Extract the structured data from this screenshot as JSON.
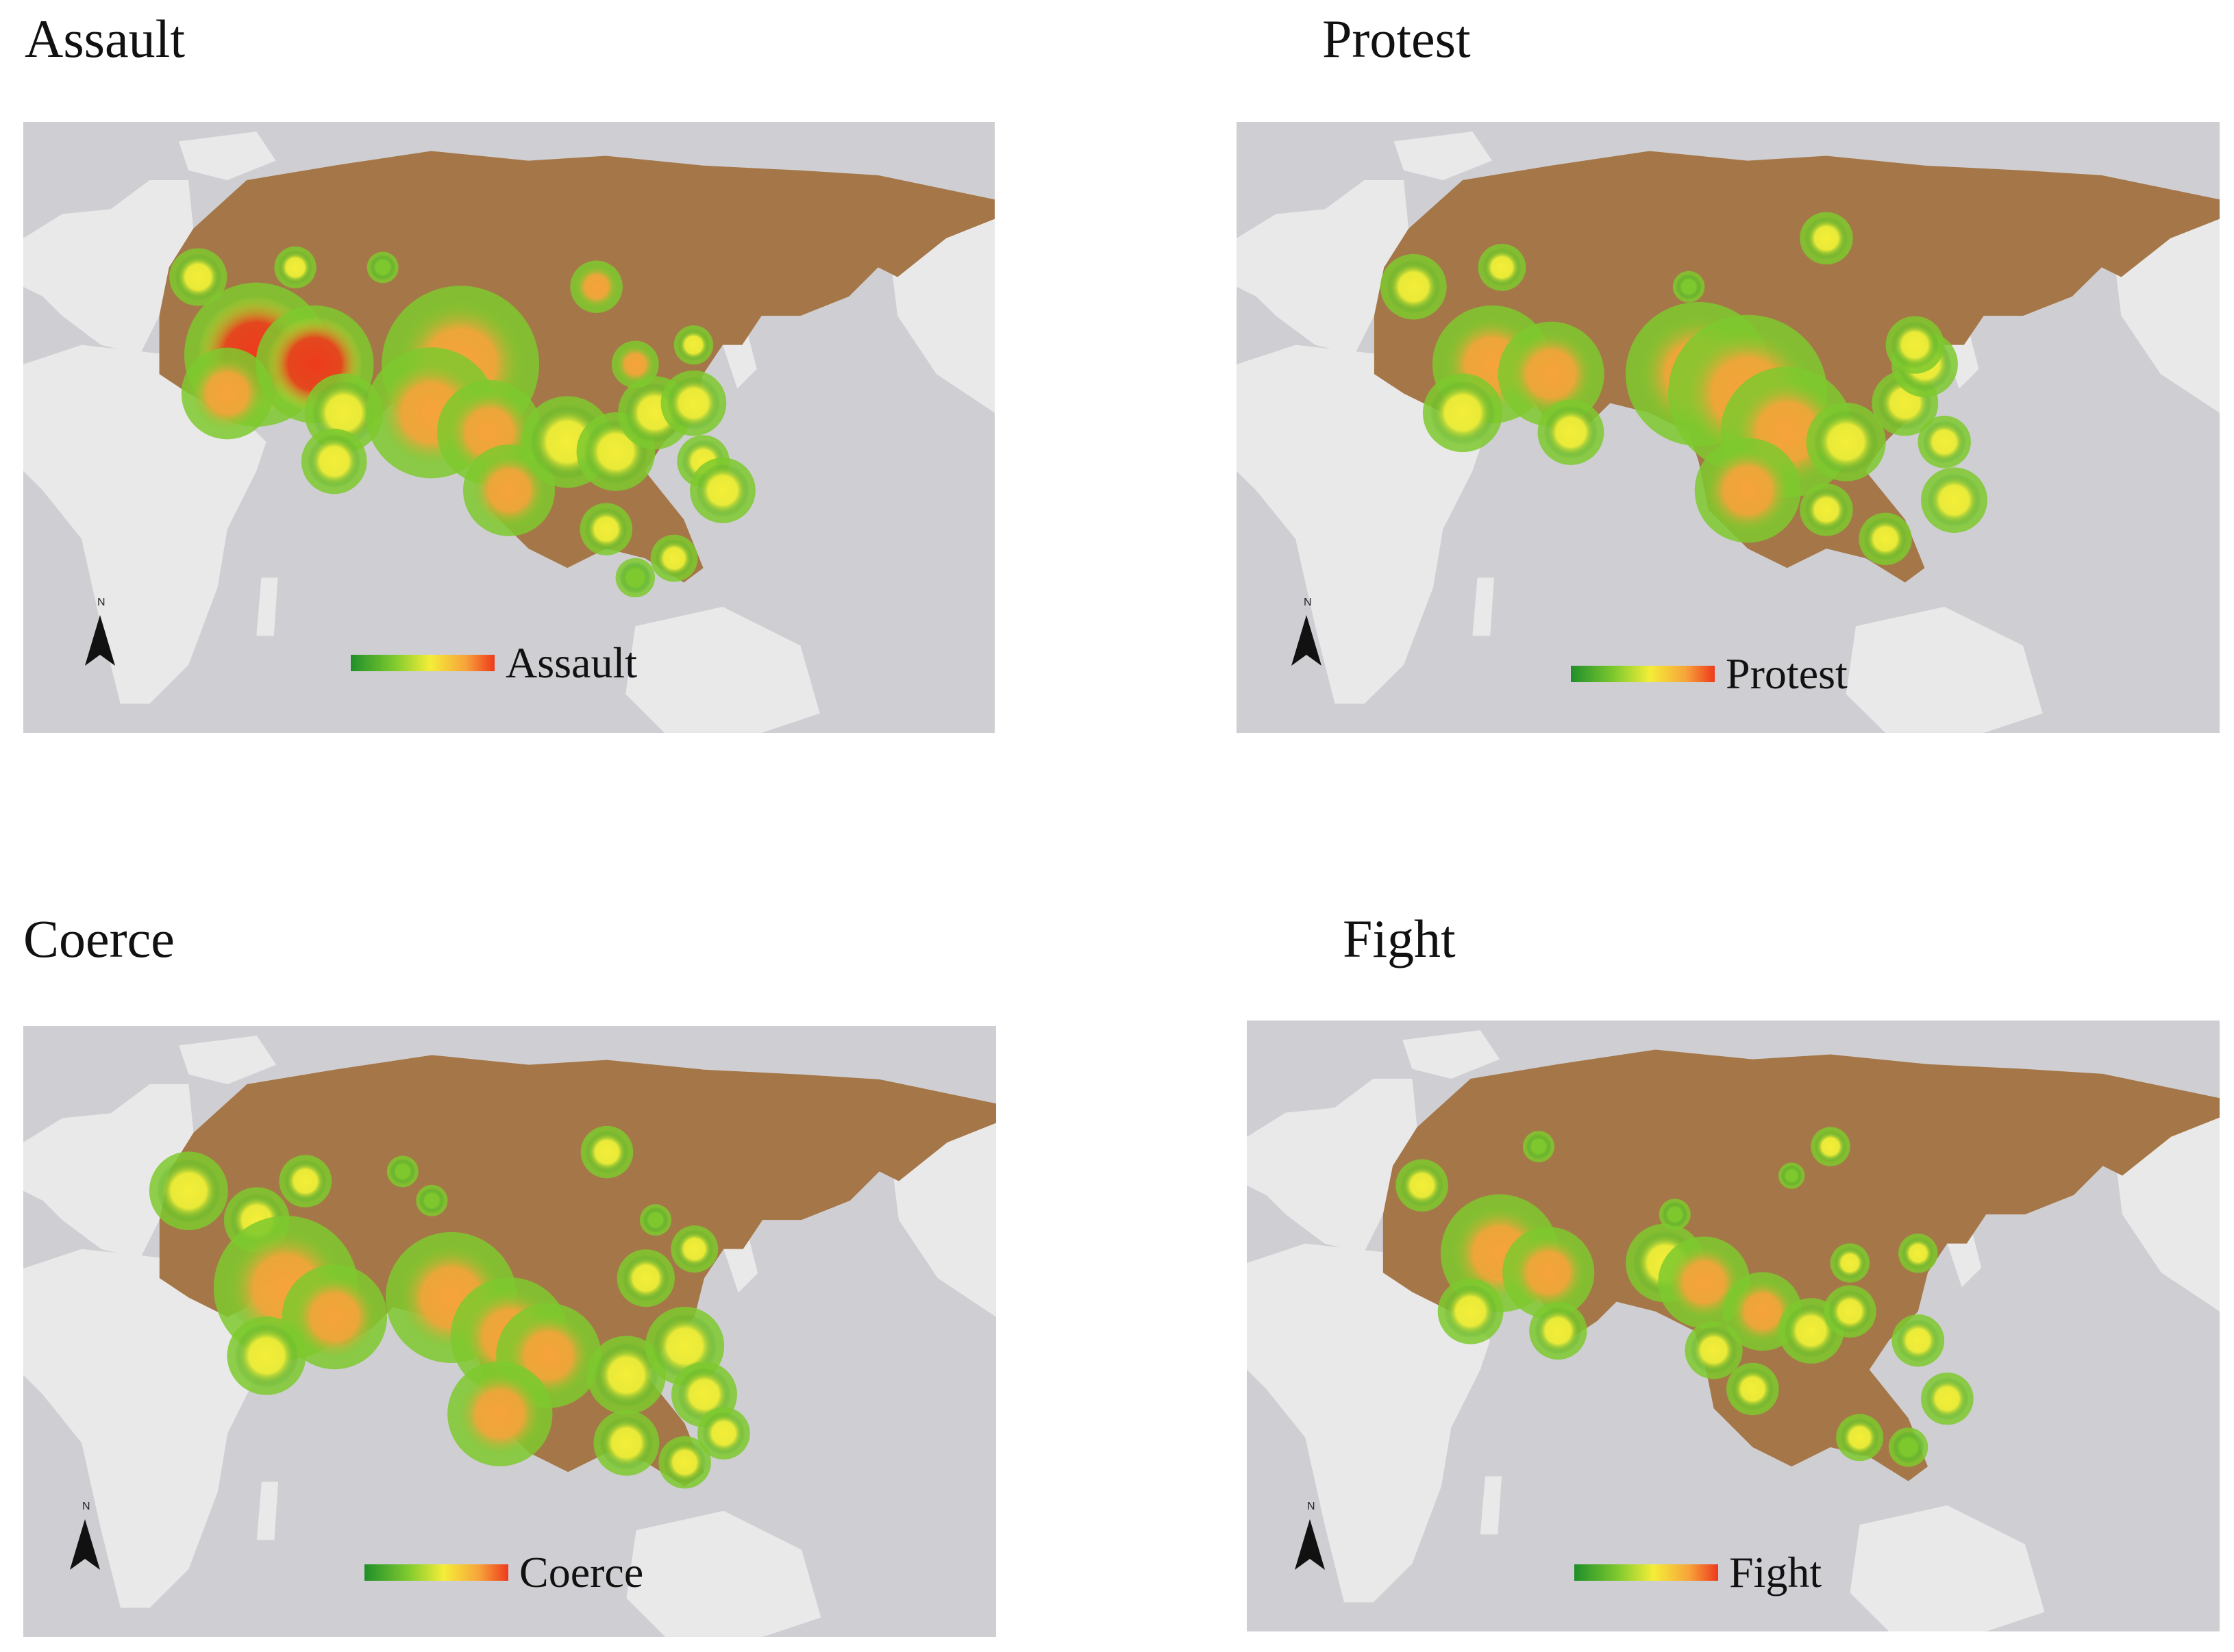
{
  "panels": [
    {
      "title": "Assault",
      "legend_label": "Assault"
    },
    {
      "title": "Protest",
      "legend_label": "Protest"
    },
    {
      "title": "Coerce",
      "legend_label": "Coerce"
    },
    {
      "title": "Fight",
      "legend_label": "Fight"
    }
  ],
  "legend": {
    "color_ramp": [
      "#1f8f2a",
      "#7ec92e",
      "#f4ee38",
      "#f7a33a",
      "#ee3a1c"
    ]
  },
  "colors": {
    "ocean": "#cfcfd3",
    "other_land": "#e9e9ea",
    "study_region": "#a57748"
  },
  "icons": {
    "north_arrow": "north-arrow-icon"
  }
}
